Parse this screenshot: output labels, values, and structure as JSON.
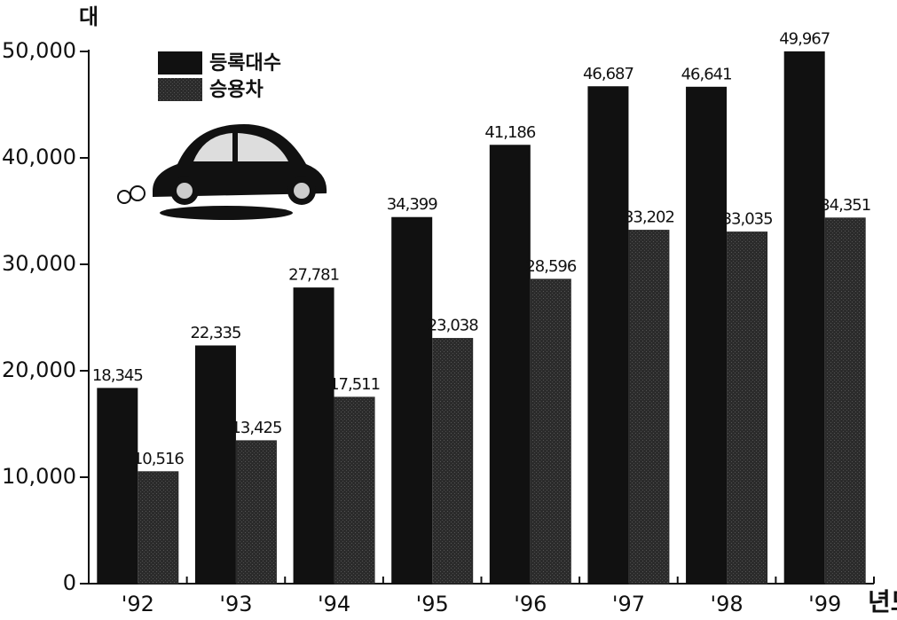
{
  "chart_data": {
    "type": "bar",
    "y_label": "대",
    "x_label": "년도",
    "categories": [
      "'92",
      "'93",
      "'94",
      "'95",
      "'96",
      "'97",
      "'98",
      "'99"
    ],
    "series": [
      {
        "name": "등록대수",
        "color": "#111111",
        "values": [
          18345,
          22335,
          27781,
          34399,
          41186,
          46687,
          46641,
          49967
        ],
        "value_labels": [
          "18,345",
          "22,335",
          "27,781",
          "34,399",
          "41,186",
          "46,687",
          "46,641",
          "49,967"
        ]
      },
      {
        "name": "승용차",
        "color": "#2b2b2b",
        "values": [
          10516,
          13425,
          17511,
          23038,
          28596,
          33202,
          33035,
          34351
        ],
        "value_labels": [
          "10,516",
          "13,425",
          "17,511",
          "23,038",
          "28,596",
          "33,202",
          "33,035",
          "34,351"
        ]
      }
    ],
    "ylim": [
      0,
      50000
    ],
    "yticks": [
      0,
      {
        "value": 10000,
        "label": "10,000"
      },
      {
        "value": 20000,
        "label": "20,000"
      },
      {
        "value": 30000,
        "label": "30,000"
      },
      {
        "value": 40000,
        "label": "40,000"
      },
      {
        "value": 50000,
        "label": "50,000"
      }
    ],
    "legend": "upper left",
    "grid": false
  }
}
